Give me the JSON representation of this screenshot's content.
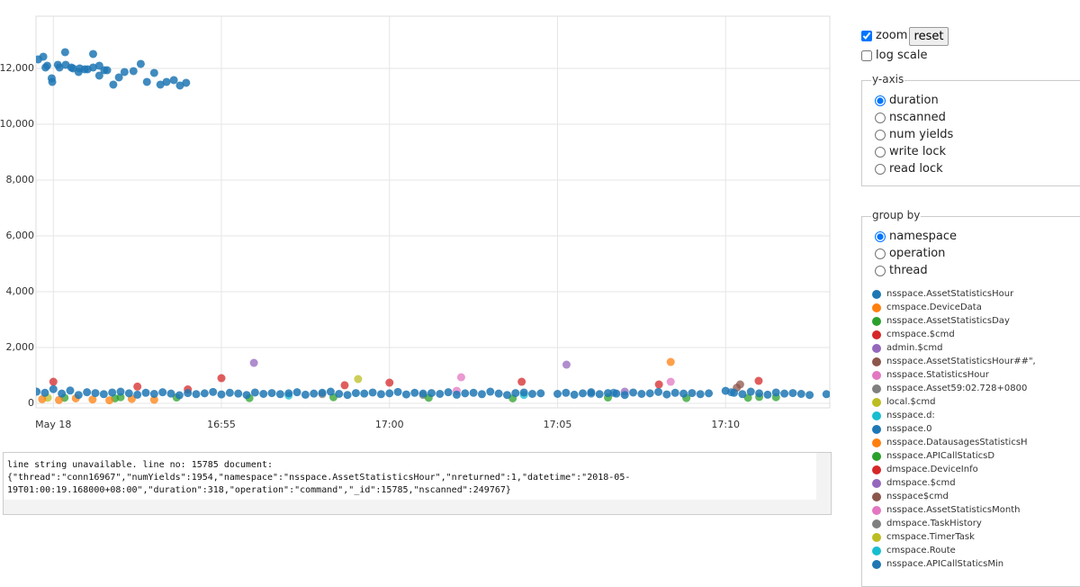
{
  "chart_data": {
    "type": "scatter",
    "xlim": [
      "16:49:29",
      "17:13:06"
    ],
    "xticks": [
      {
        "value": "16:50:00",
        "label": "May 18"
      },
      {
        "value": "16:55:00",
        "label": "16:55"
      },
      {
        "value": "17:00:00",
        "label": "17:00"
      },
      {
        "value": "17:05:00",
        "label": "17:05"
      },
      {
        "value": "17:10:00",
        "label": "17:10"
      }
    ],
    "ylim": [
      -160,
      13870
    ],
    "yticks": [
      0,
      {
        "value": 2000,
        "label": "2,000"
      },
      {
        "value": 4000,
        "label": "4,000"
      },
      {
        "value": 6000,
        "label": "6,000"
      },
      {
        "value": 8000,
        "label": "8,000"
      },
      {
        "value": 10000,
        "label": "10,000"
      },
      {
        "value": 12000,
        "label": "12,000"
      }
    ],
    "grid": true,
    "log_scale": false,
    "series": [
      {
        "name": "nsspace.AssetStatisticsHour",
        "color": "#1f77b4",
        "x": [
          "16:49:33",
          "16:49:42",
          "16:49:46",
          "16:49:49",
          "16:49:57",
          "16:49:58",
          "16:50:08",
          "16:50:11",
          "16:50:21",
          "16:50:22",
          "16:50:32",
          "16:50:35",
          "16:50:45",
          "16:50:47",
          "16:50:56",
          "16:51:01",
          "16:51:11",
          "16:51:11",
          "16:51:22",
          "16:51:22",
          "16:51:31",
          "16:51:36",
          "16:51:47",
          "16:51:57",
          "16:52:07",
          "16:52:23",
          "16:52:36",
          "16:52:47",
          "16:53:00",
          "16:53:11",
          "16:53:22",
          "16:53:35",
          "16:53:46",
          "16:53:57",
          "16:49:30",
          "16:49:45",
          "16:50:00",
          "16:50:15",
          "16:50:30",
          "16:50:45",
          "16:51:00",
          "16:51:15",
          "16:51:30",
          "16:51:45",
          "16:52:00",
          "16:52:15",
          "16:52:30",
          "16:52:45",
          "16:53:00",
          "16:53:15",
          "16:53:30",
          "16:53:45",
          "16:54:00",
          "16:54:15",
          "16:54:30",
          "16:54:45",
          "16:55:00",
          "16:55:15",
          "16:55:30",
          "16:55:45",
          "16:56:00",
          "16:56:15",
          "16:56:30",
          "16:56:45",
          "16:57:00",
          "16:57:15",
          "16:57:30",
          "16:57:45",
          "16:58:00",
          "16:58:15",
          "16:58:30",
          "16:58:45",
          "16:59:00",
          "16:59:15",
          "16:59:30",
          "16:59:45",
          "17:00:00",
          "17:00:15",
          "17:00:30",
          "17:00:45",
          "17:01:00",
          "17:01:15",
          "17:01:30",
          "17:01:45",
          "17:02:00",
          "17:02:15",
          "17:02:30",
          "17:02:45",
          "17:03:00",
          "17:03:15",
          "17:03:30",
          "17:03:45",
          "17:04:00",
          "17:04:15",
          "17:04:30",
          "17:05:00",
          "17:05:15",
          "17:05:30",
          "17:05:45",
          "17:06:00",
          "17:06:15",
          "17:06:30",
          "17:06:45",
          "17:07:00",
          "17:07:15",
          "17:07:30",
          "17:07:45",
          "17:08:00",
          "17:08:15",
          "17:08:30",
          "17:08:45",
          "17:09:00",
          "17:09:15",
          "17:09:30",
          "17:10:00",
          "17:10:15",
          "17:10:30",
          "17:10:45",
          "17:11:00",
          "17:11:15",
          "17:11:30",
          "17:11:45",
          "17:12:00",
          "17:12:15",
          "17:12:30",
          "17:13:00"
        ],
        "values": [
          12323,
          12419,
          12032,
          12097,
          11645,
          11516,
          12129,
          12032,
          12581,
          12129,
          12032,
          12000,
          11871,
          12000,
          11968,
          11968,
          12516,
          12032,
          12097,
          11742,
          11935,
          11935,
          11419,
          11677,
          11871,
          11903,
          12161,
          11516,
          11839,
          11419,
          11516,
          11581,
          11387,
          11484,
          420,
          380,
          510,
          350,
          460,
          300,
          400,
          370,
          330,
          390,
          420,
          360,
          310,
          380,
          340,
          400,
          350,
          290,
          370,
          330,
          360,
          410,
          320,
          380,
          350,
          300,
          390,
          340,
          370,
          330,
          360,
          400,
          310,
          350,
          380,
          420,
          340,
          300,
          370,
          350,
          390,
          330,
          360,
          410,
          320,
          380,
          350,
          370,
          340,
          400,
          310,
          360,
          380,
          330,
          420,
          350,
          300,
          370,
          390,
          340,
          360,
          340,
          380,
          310,
          360,
          400,
          330,
          370,
          350,
          300,
          390,
          340,
          360,
          410,
          320,
          380,
          350,
          370,
          330,
          360,
          450,
          380,
          330,
          420,
          360,
          310,
          390,
          350,
          370,
          340,
          300,
          330
        ]
      },
      {
        "name": "cmspace.DeviceData",
        "color": "#ff7f0e",
        "x": [
          "16:49:40",
          "16:50:10",
          "16:50:40",
          "16:51:10",
          "16:51:40",
          "16:52:20",
          "16:53:00"
        ],
        "values": [
          150,
          120,
          180,
          140,
          110,
          160,
          130
        ]
      },
      {
        "name": "nsspace.AssetStatisticsDay",
        "color": "#2ca02c",
        "x": [
          "16:50:20",
          "16:51:50",
          "16:53:40",
          "16:55:50",
          "16:58:20",
          "17:01:10",
          "17:03:40",
          "17:06:30",
          "17:08:50",
          "17:10:40",
          "17:11:30"
        ],
        "values": [
          200,
          180,
          210,
          190,
          220,
          200,
          180,
          210,
          190,
          200,
          220
        ]
      },
      {
        "name": "cmspace.$cmd",
        "color": "#d62728",
        "x": [
          "16:50:00",
          "16:52:30",
          "16:55:00",
          "16:58:40",
          "17:00:00",
          "17:03:56",
          "17:08:01",
          "17:10:59"
        ],
        "values": [
          774,
          600,
          903,
          650,
          742,
          774,
          677,
          806
        ]
      },
      {
        "name": "admin.$cmd",
        "color": "#9467bd",
        "x": [
          "16:55:58",
          "17:05:16"
        ],
        "values": [
          1452,
          1387
        ]
      },
      {
        "name": "nsspace.AssetStatisticsHour##\",",
        "color": "#8c564b",
        "x": [
          "17:10:26"
        ],
        "values": [
          677
        ]
      },
      {
        "name": "nsspace.StatisticsHour",
        "color": "#e377c2",
        "x": [
          "17:02:08",
          "17:08:22"
        ],
        "values": [
          935,
          774
        ]
      },
      {
        "name": "nsspace.Asset59:02.728+0800",
        "color": "#7f7f7f",
        "x": [
          "17:01:00"
        ],
        "values": [
          300
        ]
      },
      {
        "name": "local.$cmd",
        "color": "#bcbd22",
        "x": [
          "16:59:04"
        ],
        "values": [
          871
        ]
      },
      {
        "name": "nsspace.d:",
        "color": "#17becf",
        "x": [
          "16:57:00"
        ],
        "values": [
          280
        ]
      },
      {
        "name": "nsspace.0",
        "color": "#1f77b4",
        "x": [
          "17:06:00"
        ],
        "values": [
          350
        ]
      },
      {
        "name": "nsspace.DatausagesStatisticsH",
        "color": "#ff7f0e",
        "x": [
          "17:08:22"
        ],
        "values": [
          1484
        ]
      },
      {
        "name": "nsspace.APICallStaticsD",
        "color": "#2ca02c",
        "x": [
          "16:52:00",
          "17:11:00"
        ],
        "values": [
          220,
          230
        ]
      },
      {
        "name": "dmspace.DeviceInfo",
        "color": "#d62728",
        "x": [
          "16:54:00"
        ],
        "values": [
          500
        ]
      },
      {
        "name": "dmspace.$cmd",
        "color": "#9467bd",
        "x": [
          "17:07:00"
        ],
        "values": [
          420
        ]
      },
      {
        "name": "nsspace$cmd",
        "color": "#8c564b",
        "x": [
          "17:10:20"
        ],
        "values": [
          560
        ]
      },
      {
        "name": "nsspace.AssetStatisticsMonth",
        "color": "#e377c2",
        "x": [
          "17:02:00"
        ],
        "values": [
          450
        ]
      },
      {
        "name": "dmspace.TaskHistory",
        "color": "#7f7f7f",
        "x": [
          "16:58:00"
        ],
        "values": [
          330
        ]
      },
      {
        "name": "cmspace.TimerTask",
        "color": "#bcbd22",
        "x": [
          "16:49:50"
        ],
        "values": [
          200
        ]
      },
      {
        "name": "cmspace.Route",
        "color": "#17becf",
        "x": [
          "17:04:00"
        ],
        "values": [
          300
        ]
      },
      {
        "name": "nsspace.APICallStaticsMin",
        "color": "#1f77b4",
        "x": [
          "17:06:40",
          "17:10:10"
        ],
        "values": [
          380,
          400
        ]
      }
    ]
  },
  "controls": {
    "zoom": {
      "label": "zoom",
      "checked": true
    },
    "reset": "reset",
    "log_scale": {
      "label": "log scale"
    },
    "y_axis": {
      "legend": "y-axis",
      "options": [
        "duration",
        "nscanned",
        "num yields",
        "write lock",
        "read lock"
      ],
      "selected": 0
    },
    "group_by": {
      "legend": "group by",
      "options": [
        "namespace",
        "operation",
        "thread"
      ],
      "selected": 0
    }
  },
  "console": {
    "text": "line string unavailable. line no: 15785 document: {\"thread\":\"conn16967\",\"numYields\":1954,\"namespace\":\"nsspace.AssetStatisticsHour\",\"nreturned\":1,\"datetime\":\"2018-05-19T01:00:19.168000+08:00\",\"duration\":318,\"operation\":\"command\",\"_id\":15785,\"nscanned\":249767}"
  }
}
